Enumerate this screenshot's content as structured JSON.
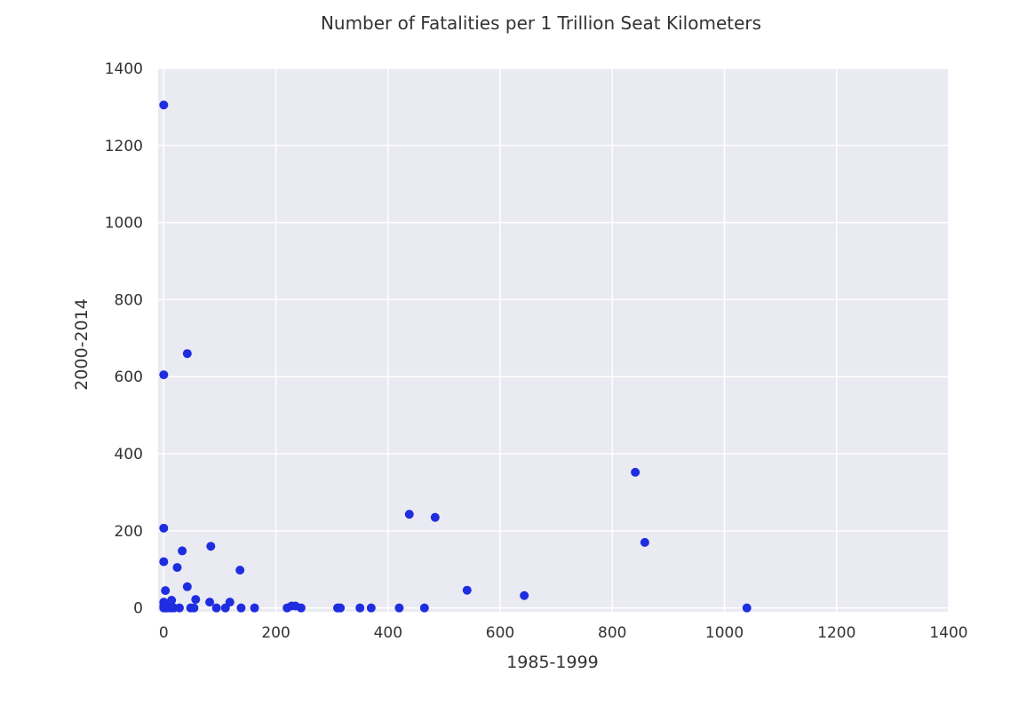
{
  "chart_data": {
    "type": "scatter",
    "title": "Number of Fatalities per 1 Trillion Seat Kilometers",
    "xlabel": "1985-1999",
    "ylabel": "2000-2014",
    "xlim": [
      -10,
      1400
    ],
    "ylim": [
      -10,
      1400
    ],
    "xticks": [
      "0",
      "200",
      "400",
      "600",
      "800",
      "1000",
      "1200",
      "1400"
    ],
    "yticks": [
      "0",
      "200",
      "400",
      "600",
      "800",
      "1000",
      "1200",
      "1400"
    ],
    "grid": true,
    "marker_color": "#1f2de0",
    "plot_background": "#eaeaf2",
    "grid_color": "#ffffff",
    "series": [
      {
        "points": [
          [
            0,
            1305
          ],
          [
            0,
            605
          ],
          [
            0,
            207
          ],
          [
            0,
            120
          ],
          [
            3,
            45
          ],
          [
            0,
            15
          ],
          [
            0,
            5
          ],
          [
            0,
            0
          ],
          [
            3,
            0
          ],
          [
            6,
            0
          ],
          [
            8,
            5
          ],
          [
            12,
            0
          ],
          [
            14,
            20
          ],
          [
            18,
            0
          ],
          [
            24,
            105
          ],
          [
            28,
            0
          ],
          [
            33,
            148
          ],
          [
            42,
            660
          ],
          [
            42,
            55
          ],
          [
            48,
            0
          ],
          [
            54,
            0
          ],
          [
            57,
            22
          ],
          [
            82,
            15
          ],
          [
            84,
            160
          ],
          [
            94,
            0
          ],
          [
            110,
            0
          ],
          [
            118,
            15
          ],
          [
            136,
            98
          ],
          [
            138,
            0
          ],
          [
            162,
            0
          ],
          [
            220,
            0
          ],
          [
            228,
            5
          ],
          [
            235,
            5
          ],
          [
            245,
            0
          ],
          [
            310,
            0
          ],
          [
            315,
            0
          ],
          [
            350,
            0
          ],
          [
            370,
            0
          ],
          [
            420,
            0
          ],
          [
            438,
            243
          ],
          [
            465,
            0
          ],
          [
            484,
            235
          ],
          [
            541,
            46
          ],
          [
            643,
            32
          ],
          [
            841,
            352
          ],
          [
            858,
            170
          ],
          [
            1040,
            0
          ]
        ]
      }
    ]
  }
}
